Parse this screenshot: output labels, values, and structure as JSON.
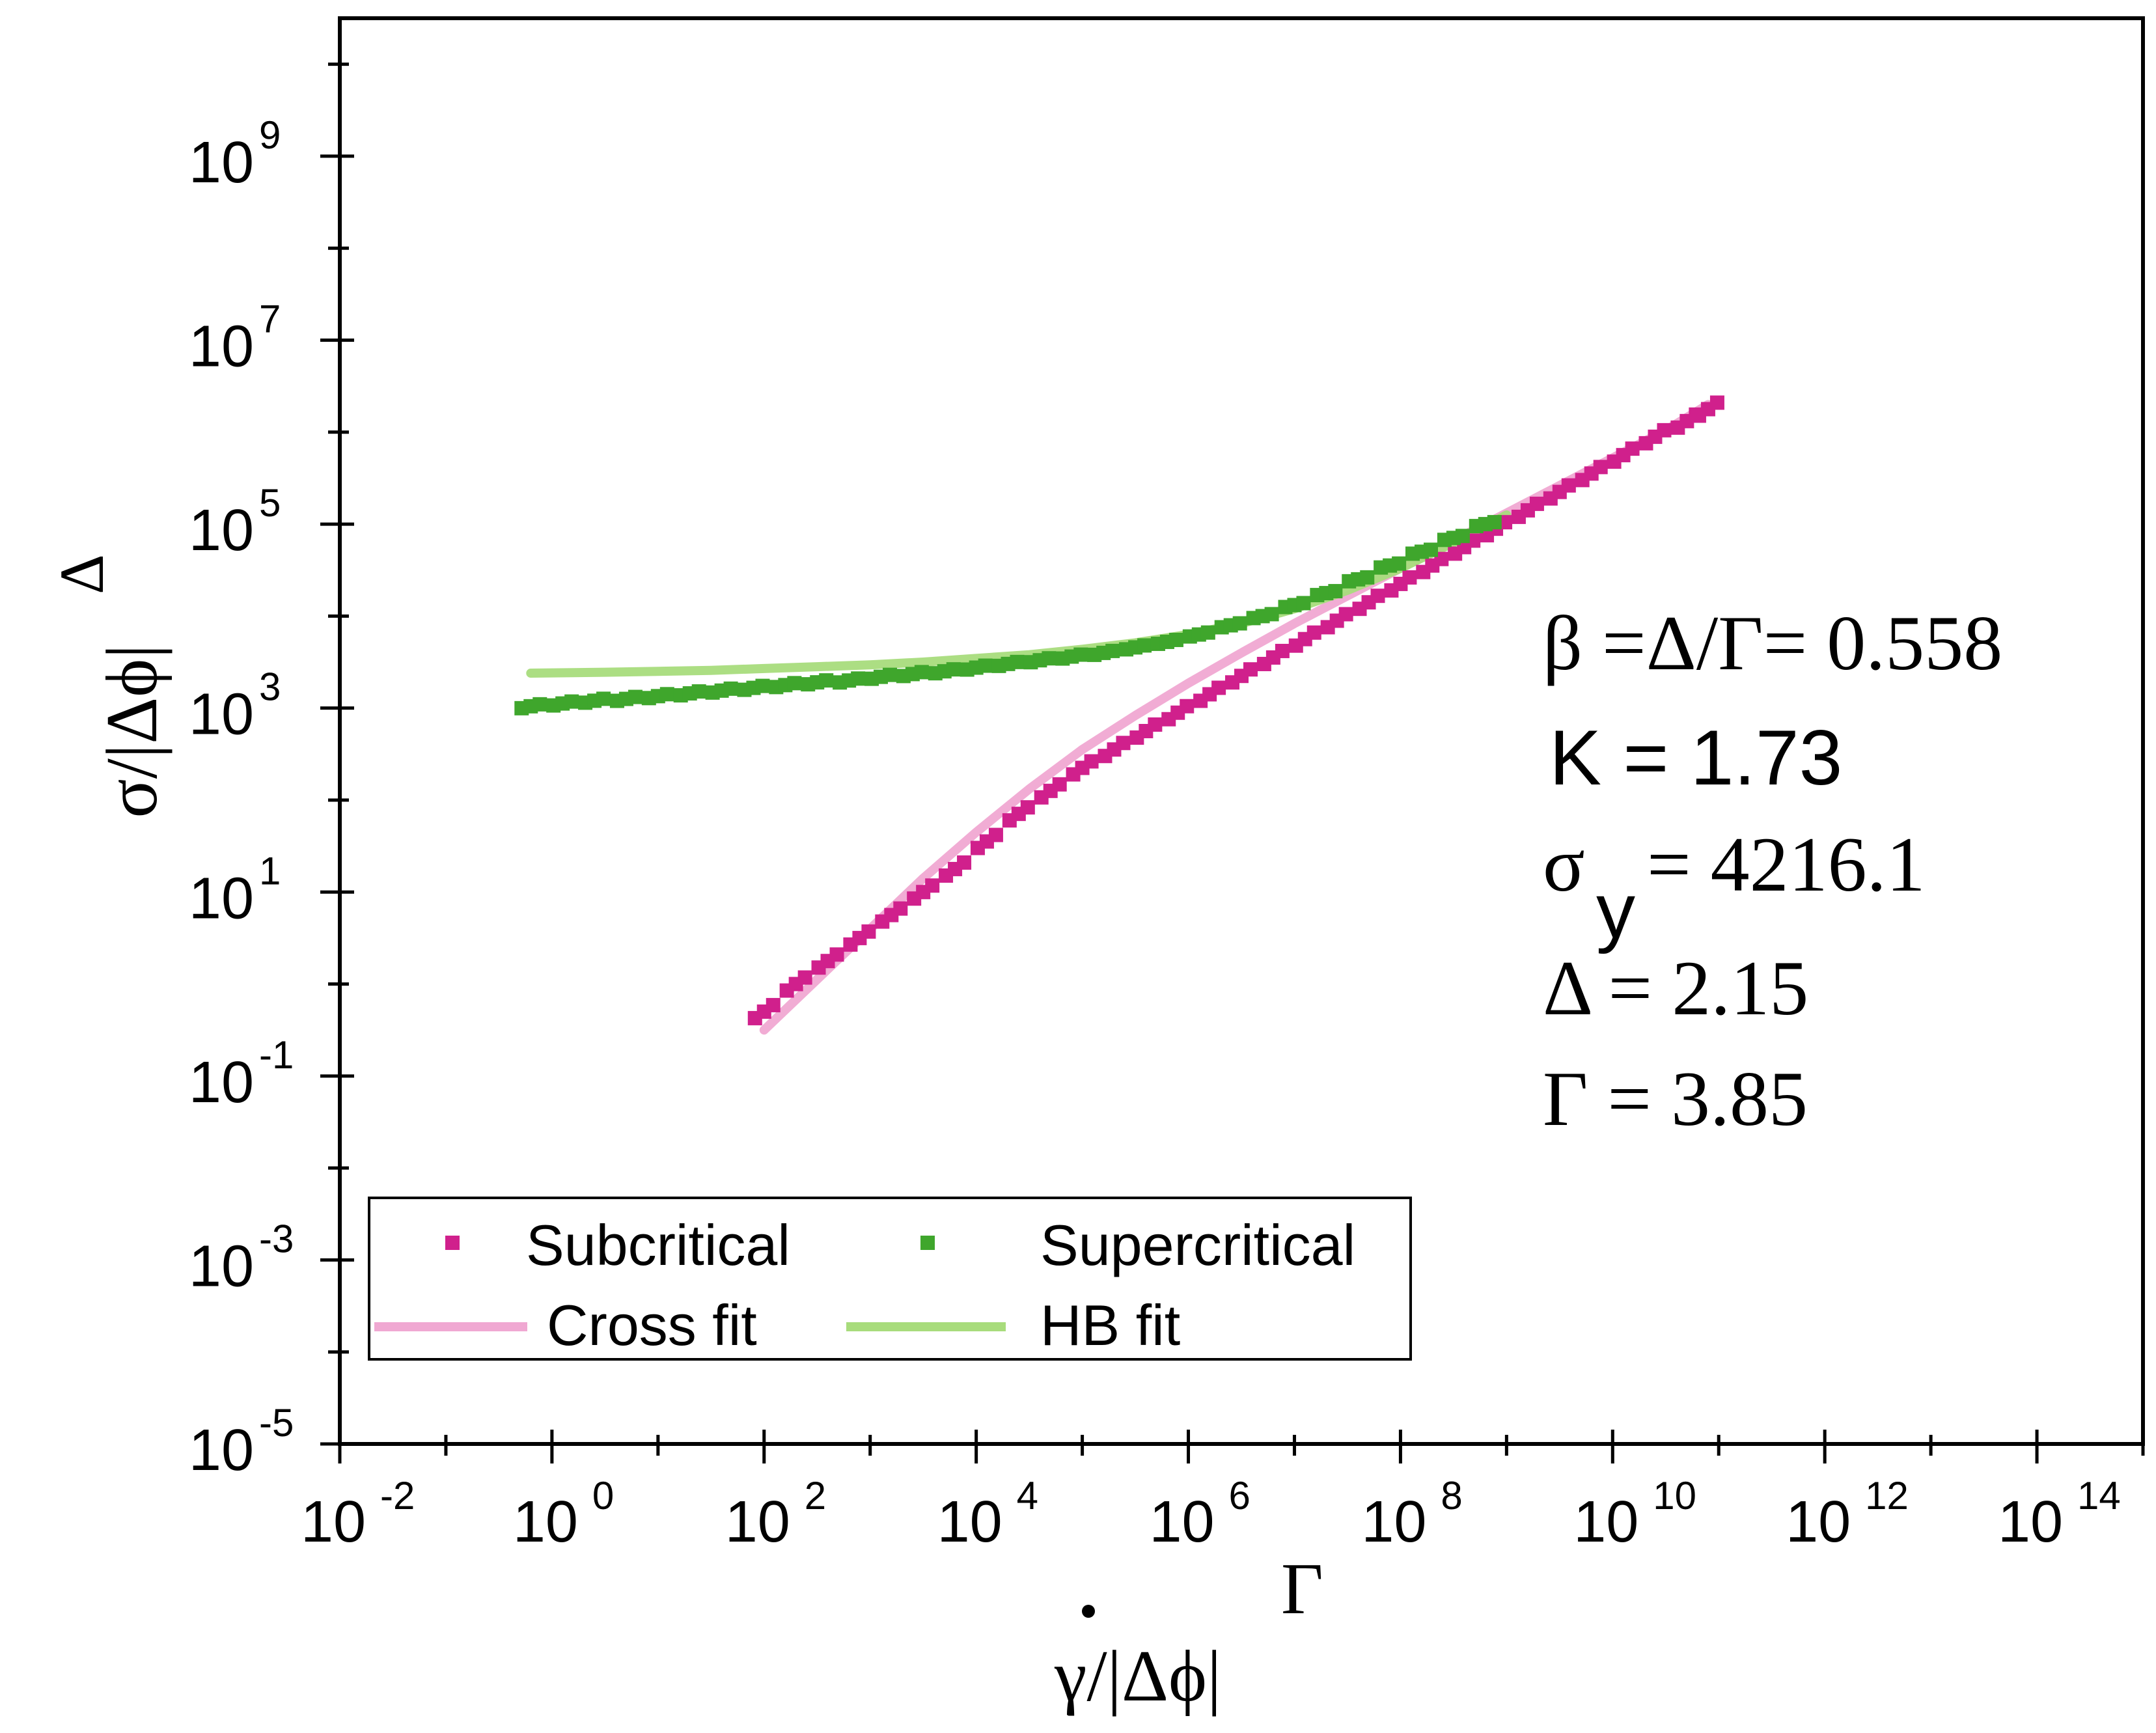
{
  "chart_data": {
    "type": "scatter",
    "x_scale": "log",
    "y_scale": "log",
    "xlim_log10": [
      -2,
      15
    ],
    "ylim_log10": [
      -5,
      10.5
    ],
    "xlabel": {
      "base": "γ/|Δϕ|",
      "exponent": "Γ"
    },
    "ylabel": {
      "base": "σ/|Δϕ|",
      "exponent": "Δ"
    },
    "x_ticks": [
      {
        "base": "10",
        "exp": "-2"
      },
      {
        "base": "10",
        "exp": "0"
      },
      {
        "base": "10",
        "exp": "2"
      },
      {
        "base": "10",
        "exp": "4"
      },
      {
        "base": "10",
        "exp": "6"
      },
      {
        "base": "10",
        "exp": "8"
      },
      {
        "base": "10",
        "exp": "10"
      },
      {
        "base": "10",
        "exp": "12"
      },
      {
        "base": "10",
        "exp": "14"
      }
    ],
    "x_tick_values_log10": [
      -2,
      0,
      2,
      4,
      6,
      8,
      10,
      12,
      14
    ],
    "y_ticks": [
      {
        "base": "10",
        "exp": "-5"
      },
      {
        "base": "10",
        "exp": "-3"
      },
      {
        "base": "10",
        "exp": "-1"
      },
      {
        "base": "10",
        "exp": "1"
      },
      {
        "base": "10",
        "exp": "3"
      },
      {
        "base": "10",
        "exp": "5"
      },
      {
        "base": "10",
        "exp": "7"
      },
      {
        "base": "10",
        "exp": "9"
      }
    ],
    "y_tick_values_log10": [
      -5,
      -3,
      -1,
      1,
      3,
      5,
      7,
      9
    ],
    "series": [
      {
        "name": "Subcritical",
        "kind": "points",
        "color": "#d0208c",
        "x_log10": [
          2.0,
          2.3,
          2.6,
          2.9,
          3.2,
          3.5,
          3.8,
          4.1,
          4.4,
          4.7,
          5.0,
          5.3,
          5.6,
          5.9,
          6.2,
          6.5,
          6.8,
          7.1,
          7.4,
          7.7,
          8.0,
          8.3,
          8.6,
          8.9,
          9.2,
          9.5,
          9.8,
          10.1,
          10.4,
          10.7,
          10.9
        ],
        "y_log10": [
          -0.3,
          0.0,
          0.25,
          0.5,
          0.75,
          1.0,
          1.25,
          1.55,
          1.85,
          2.1,
          2.35,
          2.55,
          2.75,
          2.95,
          3.15,
          3.35,
          3.55,
          3.75,
          3.95,
          4.15,
          4.35,
          4.55,
          4.75,
          4.95,
          5.15,
          5.35,
          5.55,
          5.75,
          5.95,
          6.12,
          6.25
        ]
      },
      {
        "name": "Supercritical",
        "kind": "points",
        "color": "#3fa62c",
        "x_log10": [
          -0.2,
          0.1,
          0.4,
          0.7,
          1.0,
          1.3,
          1.6,
          1.9,
          2.2,
          2.5,
          2.8,
          3.1,
          3.4,
          3.7,
          4.0,
          4.3,
          4.6,
          4.9,
          5.2,
          5.5,
          5.8,
          6.1,
          6.4,
          6.7,
          7.0,
          7.3,
          7.6,
          7.9,
          8.2,
          8.5,
          8.8
        ],
        "y_log10": [
          3.02,
          3.05,
          3.08,
          3.1,
          3.13,
          3.16,
          3.19,
          3.22,
          3.25,
          3.28,
          3.3,
          3.34,
          3.37,
          3.4,
          3.44,
          3.48,
          3.52,
          3.56,
          3.6,
          3.66,
          3.72,
          3.8,
          3.9,
          4.0,
          4.12,
          4.25,
          4.4,
          4.55,
          4.7,
          4.85,
          5.0
        ]
      },
      {
        "name": "Cross fit",
        "kind": "line",
        "color": "#f0a8d2",
        "x_log10": [
          2.0,
          2.5,
          3.0,
          3.5,
          4.0,
          4.5,
          5.0,
          5.5,
          6.0,
          6.5,
          7.0,
          7.5,
          8.0,
          8.5,
          9.0,
          9.5,
          10.0,
          10.5,
          10.9
        ],
        "y_log10": [
          -0.5,
          0.05,
          0.6,
          1.15,
          1.65,
          2.12,
          2.55,
          2.92,
          3.27,
          3.6,
          3.92,
          4.22,
          4.52,
          4.82,
          5.12,
          5.42,
          5.72,
          6.02,
          6.3
        ]
      },
      {
        "name": "HB fit",
        "kind": "line",
        "color": "#a8dc7c",
        "x_log10": [
          -0.2,
          0.5,
          1.0,
          1.5,
          2.0,
          2.5,
          3.0,
          3.5,
          4.0,
          4.5,
          5.0,
          5.5,
          6.0,
          6.5,
          7.0,
          7.5,
          8.0,
          8.5,
          9.0
        ],
        "y_log10": [
          3.38,
          3.39,
          3.4,
          3.41,
          3.43,
          3.45,
          3.47,
          3.5,
          3.54,
          3.58,
          3.64,
          3.71,
          3.8,
          3.92,
          4.08,
          4.28,
          4.52,
          4.8,
          5.1
        ]
      }
    ],
    "legend": {
      "placement": "bottom-left",
      "entries": [
        "Subcritical",
        "Supercritical",
        "Cross fit",
        "HB fit"
      ]
    },
    "annotations": [
      "β =Δ/Γ= 0.558",
      "K = 1.73",
      "σ",
      "y",
      "= 4216.1",
      "Δ = 2.15",
      "Γ = 3.85"
    ],
    "grid": false
  }
}
